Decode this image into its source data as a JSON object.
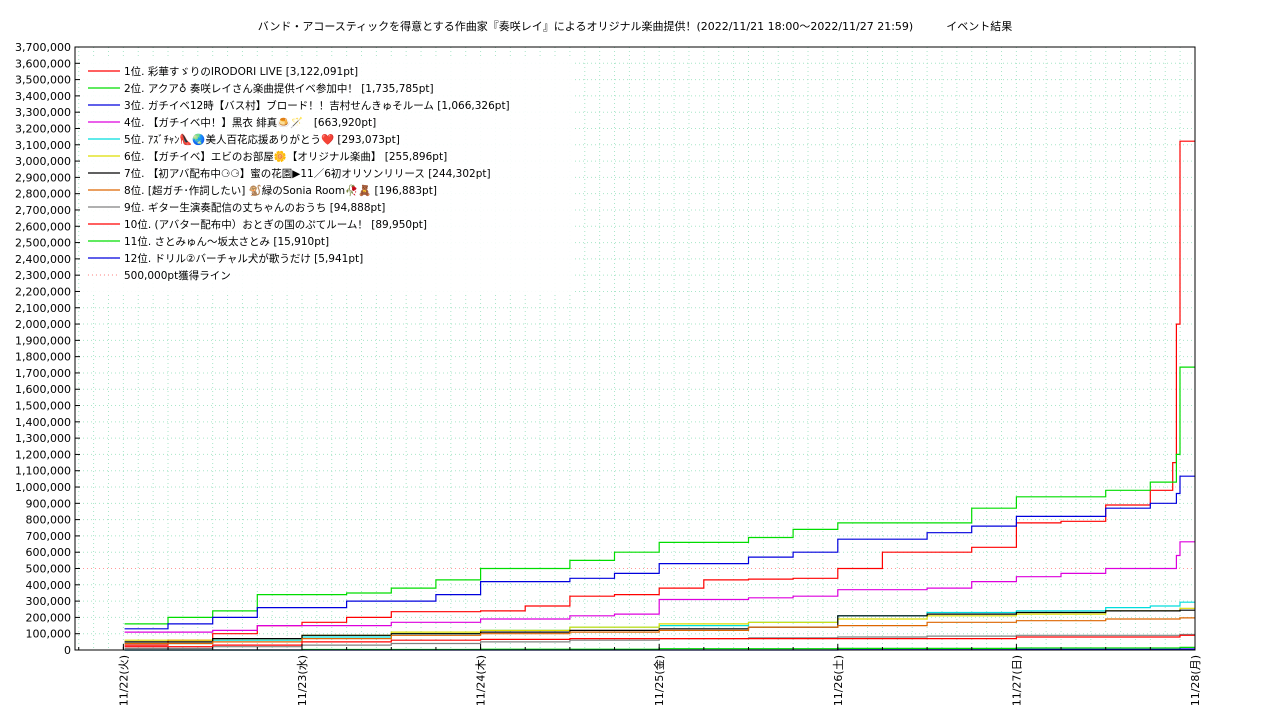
{
  "chart_data": {
    "type": "line",
    "title": "バンド・アコースティックを得意とする作曲家『奏咲レイ』によるオリジナル楽曲提供！(2022/11/21 18:00～2022/11/27 21:59)　　　イベント結果",
    "xlabel": "",
    "ylabel": "",
    "ylim": [
      0,
      3700000
    ],
    "y_tick_step": 100000,
    "x_range": [
      "2022-11-21T17:30",
      "2022-11-28T00:00"
    ],
    "x_tick_labels": [
      "11/22(火)",
      "11/23(水)",
      "11/24(木)",
      "11/25(金)",
      "11/26(土)",
      "11/27(日)",
      "11/28(月)"
    ],
    "x_tick_dates": [
      "2022-11-22",
      "2022-11-23",
      "2022-11-24",
      "2022-11-25",
      "2022-11-26",
      "2022-11-27",
      "2022-11-28"
    ],
    "grid": true,
    "legend_position": "top-left",
    "reference_line": {
      "name": "500,000pt獲得ライン",
      "value": 500000,
      "color": "#ff9999"
    },
    "series": [
      {
        "name": "1位. 彩華すゞりのIRODORI LIVE [3,122,091pt]",
        "color": "#ff0000",
        "points": [
          [
            "2022-11-22T00:10",
            30000
          ],
          [
            "2022-11-22T06:00",
            60000
          ],
          [
            "2022-11-22T12:00",
            100000
          ],
          [
            "2022-11-22T18:00",
            150000
          ],
          [
            "2022-11-23T00:00",
            170000
          ],
          [
            "2022-11-23T06:00",
            200000
          ],
          [
            "2022-11-23T12:00",
            235000
          ],
          [
            "2022-11-23T18:00",
            235000
          ],
          [
            "2022-11-24T00:00",
            240000
          ],
          [
            "2022-11-24T06:00",
            270000
          ],
          [
            "2022-11-24T12:00",
            330000
          ],
          [
            "2022-11-24T18:00",
            340000
          ],
          [
            "2022-11-25T00:00",
            380000
          ],
          [
            "2022-11-25T06:00",
            430000
          ],
          [
            "2022-11-25T12:00",
            435000
          ],
          [
            "2022-11-25T18:00",
            440000
          ],
          [
            "2022-11-26T00:00",
            500000
          ],
          [
            "2022-11-26T06:00",
            600000
          ],
          [
            "2022-11-26T12:00",
            600000
          ],
          [
            "2022-11-26T18:00",
            630000
          ],
          [
            "2022-11-27T00:00",
            780000
          ],
          [
            "2022-11-27T06:00",
            790000
          ],
          [
            "2022-11-27T12:00",
            890000
          ],
          [
            "2022-11-27T18:00",
            980000
          ],
          [
            "2022-11-27T21:00",
            1150000
          ],
          [
            "2022-11-27T21:30",
            2000000
          ],
          [
            "2022-11-27T21:59",
            3122091
          ],
          [
            "2022-11-28T00:00",
            3122091
          ]
        ]
      },
      {
        "name": "2位. アクア♁ 奏咲レイさん楽曲提供イベ参加中！ [1,735,785pt]",
        "color": "#00dd00",
        "points": [
          [
            "2022-11-22T00:10",
            160000
          ],
          [
            "2022-11-22T06:00",
            200000
          ],
          [
            "2022-11-22T12:00",
            240000
          ],
          [
            "2022-11-22T18:00",
            340000
          ],
          [
            "2022-11-23T00:00",
            340000
          ],
          [
            "2022-11-23T06:00",
            350000
          ],
          [
            "2022-11-23T12:00",
            380000
          ],
          [
            "2022-11-23T18:00",
            430000
          ],
          [
            "2022-11-24T00:00",
            500000
          ],
          [
            "2022-11-24T06:00",
            500000
          ],
          [
            "2022-11-24T12:00",
            550000
          ],
          [
            "2022-11-24T18:00",
            600000
          ],
          [
            "2022-11-25T00:00",
            660000
          ],
          [
            "2022-11-25T06:00",
            660000
          ],
          [
            "2022-11-25T12:00",
            690000
          ],
          [
            "2022-11-25T18:00",
            740000
          ],
          [
            "2022-11-26T00:00",
            780000
          ],
          [
            "2022-11-26T06:00",
            780000
          ],
          [
            "2022-11-26T12:00",
            780000
          ],
          [
            "2022-11-26T18:00",
            870000
          ],
          [
            "2022-11-27T00:00",
            940000
          ],
          [
            "2022-11-27T06:00",
            940000
          ],
          [
            "2022-11-27T12:00",
            980000
          ],
          [
            "2022-11-27T18:00",
            1030000
          ],
          [
            "2022-11-27T21:30",
            1200000
          ],
          [
            "2022-11-27T21:59",
            1735785
          ],
          [
            "2022-11-28T00:00",
            1735785
          ]
        ]
      },
      {
        "name": "3位. ガチイベ12時【バス村】ブロード！！吉村せんきゅそルーム [1,066,326pt]",
        "color": "#0000dd",
        "points": [
          [
            "2022-11-22T00:10",
            130000
          ],
          [
            "2022-11-22T06:00",
            160000
          ],
          [
            "2022-11-22T12:00",
            200000
          ],
          [
            "2022-11-22T18:00",
            260000
          ],
          [
            "2022-11-23T00:00",
            260000
          ],
          [
            "2022-11-23T06:00",
            300000
          ],
          [
            "2022-11-23T12:00",
            300000
          ],
          [
            "2022-11-23T18:00",
            340000
          ],
          [
            "2022-11-24T00:00",
            420000
          ],
          [
            "2022-11-24T06:00",
            420000
          ],
          [
            "2022-11-24T12:00",
            440000
          ],
          [
            "2022-11-24T18:00",
            470000
          ],
          [
            "2022-11-25T00:00",
            530000
          ],
          [
            "2022-11-25T06:00",
            530000
          ],
          [
            "2022-11-25T12:00",
            570000
          ],
          [
            "2022-11-25T18:00",
            600000
          ],
          [
            "2022-11-26T00:00",
            680000
          ],
          [
            "2022-11-26T06:00",
            680000
          ],
          [
            "2022-11-26T12:00",
            720000
          ],
          [
            "2022-11-26T18:00",
            760000
          ],
          [
            "2022-11-27T00:00",
            820000
          ],
          [
            "2022-11-27T06:00",
            820000
          ],
          [
            "2022-11-27T12:00",
            870000
          ],
          [
            "2022-11-27T18:00",
            900000
          ],
          [
            "2022-11-27T21:30",
            960000
          ],
          [
            "2022-11-27T21:59",
            1066326
          ],
          [
            "2022-11-28T00:00",
            1066326
          ]
        ]
      },
      {
        "name": "4位. 【ガチイベ中！】黒衣 緋真🍮🪄　[663,920pt]",
        "color": "#dd00dd",
        "points": [
          [
            "2022-11-22T00:10",
            110000
          ],
          [
            "2022-11-22T12:00",
            120000
          ],
          [
            "2022-11-22T18:00",
            150000
          ],
          [
            "2022-11-23T06:00",
            150000
          ],
          [
            "2022-11-23T12:00",
            170000
          ],
          [
            "2022-11-24T00:00",
            190000
          ],
          [
            "2022-11-24T12:00",
            210000
          ],
          [
            "2022-11-24T18:00",
            220000
          ],
          [
            "2022-11-25T00:00",
            310000
          ],
          [
            "2022-11-25T12:00",
            320000
          ],
          [
            "2022-11-25T18:00",
            330000
          ],
          [
            "2022-11-26T00:00",
            370000
          ],
          [
            "2022-11-26T12:00",
            380000
          ],
          [
            "2022-11-26T18:00",
            420000
          ],
          [
            "2022-11-27T00:00",
            450000
          ],
          [
            "2022-11-27T06:00",
            470000
          ],
          [
            "2022-11-27T12:00",
            500000
          ],
          [
            "2022-11-27T18:00",
            500000
          ],
          [
            "2022-11-27T21:30",
            580000
          ],
          [
            "2022-11-27T21:59",
            663920
          ],
          [
            "2022-11-28T00:00",
            663920
          ]
        ]
      },
      {
        "name": "5位. ｱｽﾞﾁｬﾝ👠🌏美人百花応援ありがとう❤️ [293,073pt]",
        "color": "#00dddd",
        "points": [
          [
            "2022-11-22T00:10",
            40000
          ],
          [
            "2022-11-22T12:00",
            60000
          ],
          [
            "2022-11-23T00:00",
            80000
          ],
          [
            "2022-11-23T12:00",
            100000
          ],
          [
            "2022-11-24T00:00",
            120000
          ],
          [
            "2022-11-24T12:00",
            140000
          ],
          [
            "2022-11-25T00:00",
            150000
          ],
          [
            "2022-11-25T12:00",
            170000
          ],
          [
            "2022-11-26T00:00",
            210000
          ],
          [
            "2022-11-26T12:00",
            230000
          ],
          [
            "2022-11-27T00:00",
            240000
          ],
          [
            "2022-11-27T12:00",
            260000
          ],
          [
            "2022-11-27T18:00",
            270000
          ],
          [
            "2022-11-27T21:59",
            293073
          ],
          [
            "2022-11-28T00:00",
            293073
          ]
        ]
      },
      {
        "name": "6位. 【ガチイベ】エビのお部屋🌼【オリジナル楽曲】 [255,896pt]",
        "color": "#dddd00",
        "points": [
          [
            "2022-11-22T00:10",
            60000
          ],
          [
            "2022-11-22T12:00",
            70000
          ],
          [
            "2022-11-23T00:00",
            90000
          ],
          [
            "2022-11-23T12:00",
            110000
          ],
          [
            "2022-11-24T00:00",
            120000
          ],
          [
            "2022-11-24T12:00",
            140000
          ],
          [
            "2022-11-25T00:00",
            160000
          ],
          [
            "2022-11-25T12:00",
            170000
          ],
          [
            "2022-11-26T00:00",
            190000
          ],
          [
            "2022-11-26T12:00",
            210000
          ],
          [
            "2022-11-27T00:00",
            220000
          ],
          [
            "2022-11-27T12:00",
            240000
          ],
          [
            "2022-11-27T21:59",
            255896
          ],
          [
            "2022-11-28T00:00",
            255896
          ]
        ]
      },
      {
        "name": "7位. 【初アバ配布中⚆⚆】蜜の花園▶11／6初オリソンリリース [244,302pt]",
        "color": "#000000",
        "points": [
          [
            "2022-11-22T00:10",
            50000
          ],
          [
            "2022-11-22T12:00",
            70000
          ],
          [
            "2022-11-23T00:00",
            90000
          ],
          [
            "2022-11-23T12:00",
            100000
          ],
          [
            "2022-11-24T00:00",
            110000
          ],
          [
            "2022-11-24T12:00",
            120000
          ],
          [
            "2022-11-25T00:00",
            130000
          ],
          [
            "2022-11-25T12:00",
            140000
          ],
          [
            "2022-11-26T00:00",
            210000
          ],
          [
            "2022-11-26T12:00",
            220000
          ],
          [
            "2022-11-27T00:00",
            230000
          ],
          [
            "2022-11-27T12:00",
            240000
          ],
          [
            "2022-11-27T21:59",
            244302
          ],
          [
            "2022-11-28T00:00",
            244302
          ]
        ]
      },
      {
        "name": "8位. [超ガチ･作詞したい] 🐒緑のSonia Room🥀🧸 [196,883pt]",
        "color": "#dd6600",
        "points": [
          [
            "2022-11-22T00:10",
            40000
          ],
          [
            "2022-11-22T12:00",
            50000
          ],
          [
            "2022-11-23T00:00",
            70000
          ],
          [
            "2022-11-23T12:00",
            90000
          ],
          [
            "2022-11-24T00:00",
            100000
          ],
          [
            "2022-11-24T12:00",
            110000
          ],
          [
            "2022-11-25T00:00",
            120000
          ],
          [
            "2022-11-25T12:00",
            140000
          ],
          [
            "2022-11-26T00:00",
            150000
          ],
          [
            "2022-11-26T12:00",
            170000
          ],
          [
            "2022-11-27T00:00",
            180000
          ],
          [
            "2022-11-27T12:00",
            190000
          ],
          [
            "2022-11-27T21:59",
            196883
          ],
          [
            "2022-11-28T00:00",
            196883
          ]
        ]
      },
      {
        "name": "9位. ギター生演奏配信の丈ちゃんのおうち [94,888pt]",
        "color": "#808080",
        "points": [
          [
            "2022-11-22T00:10",
            10000
          ],
          [
            "2022-11-22T12:00",
            20000
          ],
          [
            "2022-11-23T00:00",
            30000
          ],
          [
            "2022-11-23T12:00",
            40000
          ],
          [
            "2022-11-24T00:00",
            50000
          ],
          [
            "2022-11-24T12:00",
            60000
          ],
          [
            "2022-11-25T00:00",
            70000
          ],
          [
            "2022-11-25T12:00",
            75000
          ],
          [
            "2022-11-26T00:00",
            80000
          ],
          [
            "2022-11-26T12:00",
            85000
          ],
          [
            "2022-11-27T00:00",
            90000
          ],
          [
            "2022-11-27T21:59",
            94888
          ],
          [
            "2022-11-28T00:00",
            94888
          ]
        ]
      },
      {
        "name": "10位. (アバター配布中）おとぎの国のぷてルーム！ [89,950pt]",
        "color": "#ff0000",
        "points": [
          [
            "2022-11-22T00:10",
            20000
          ],
          [
            "2022-11-22T12:00",
            30000
          ],
          [
            "2022-11-23T00:00",
            50000
          ],
          [
            "2022-11-23T12:00",
            60000
          ],
          [
            "2022-11-24T00:00",
            65000
          ],
          [
            "2022-11-24T12:00",
            70000
          ],
          [
            "2022-11-25T00:00",
            70000
          ],
          [
            "2022-11-25T12:00",
            70000
          ],
          [
            "2022-11-26T00:00",
            70000
          ],
          [
            "2022-11-26T12:00",
            70000
          ],
          [
            "2022-11-27T00:00",
            80000
          ],
          [
            "2022-11-27T12:00",
            80000
          ],
          [
            "2022-11-27T21:59",
            89950
          ],
          [
            "2022-11-28T00:00",
            89950
          ]
        ]
      },
      {
        "name": "11位. さとみゅん〜坂太さとみ [15,910pt]",
        "color": "#00dd00",
        "points": [
          [
            "2022-11-22T00:10",
            0
          ],
          [
            "2022-11-23T00:00",
            3000
          ],
          [
            "2022-11-24T00:00",
            5000
          ],
          [
            "2022-11-25T00:00",
            8000
          ],
          [
            "2022-11-26T00:00",
            10000
          ],
          [
            "2022-11-27T00:00",
            12000
          ],
          [
            "2022-11-27T21:59",
            15910
          ],
          [
            "2022-11-28T00:00",
            15910
          ]
        ]
      },
      {
        "name": "12位. ドリル②バーチャル犬が歌うだけ [5,941pt]",
        "color": "#0000dd",
        "points": [
          [
            "2022-11-22T00:10",
            0
          ],
          [
            "2022-11-25T18:00",
            0
          ],
          [
            "2022-11-26T00:00",
            2000
          ],
          [
            "2022-11-27T00:00",
            4000
          ],
          [
            "2022-11-27T21:59",
            5941
          ],
          [
            "2022-11-28T00:00",
            5941
          ]
        ]
      }
    ]
  }
}
